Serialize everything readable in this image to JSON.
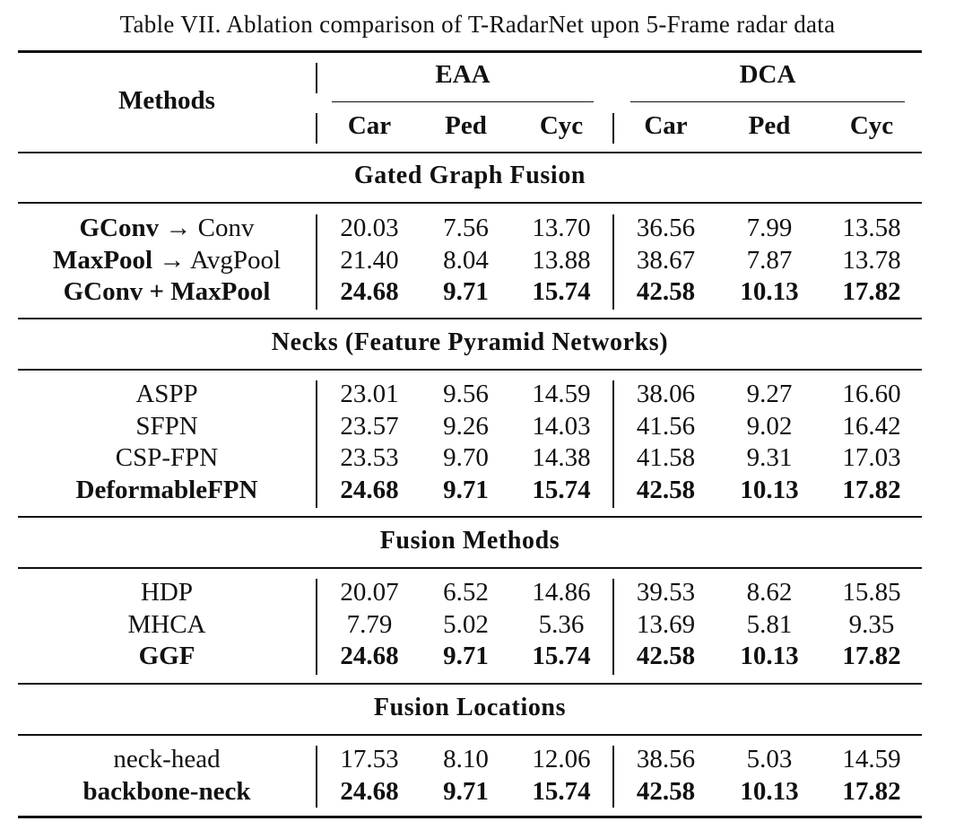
{
  "caption": "Table VII. Ablation comparison of T-RadarNet upon 5-Frame radar data",
  "header": {
    "methods": "Methods",
    "group_eaa": "EAA",
    "group_dca": "DCA",
    "cols": [
      "Car",
      "Ped",
      "Cyc",
      "Car",
      "Ped",
      "Cyc"
    ]
  },
  "sections": [
    {
      "title": "Gated Graph Fusion",
      "rows": [
        {
          "method_bold": "GConv",
          "method_plain": " → Conv",
          "values": [
            "20.03",
            "7.56",
            "13.70",
            "36.56",
            "7.99",
            "13.58"
          ],
          "bold": false
        },
        {
          "method_bold": "MaxPool",
          "method_plain": " → AvgPool",
          "values": [
            "21.40",
            "8.04",
            "13.88",
            "38.67",
            "7.87",
            "13.78"
          ],
          "bold": false
        },
        {
          "method_bold": "GConv + MaxPool",
          "method_plain": "",
          "values": [
            "24.68",
            "9.71",
            "15.74",
            "42.58",
            "10.13",
            "17.82"
          ],
          "bold": true
        }
      ]
    },
    {
      "title": "Necks (Feature Pyramid Networks)",
      "rows": [
        {
          "method_bold": "",
          "method_plain": "ASPP",
          "values": [
            "23.01",
            "9.56",
            "14.59",
            "38.06",
            "9.27",
            "16.60"
          ],
          "bold": false
        },
        {
          "method_bold": "",
          "method_plain": "SFPN",
          "values": [
            "23.57",
            "9.26",
            "14.03",
            "41.56",
            "9.02",
            "16.42"
          ],
          "bold": false
        },
        {
          "method_bold": "",
          "method_plain": "CSP-FPN",
          "values": [
            "23.53",
            "9.70",
            "14.38",
            "41.58",
            "9.31",
            "17.03"
          ],
          "bold": false
        },
        {
          "method_bold": "DeformableFPN",
          "method_plain": "",
          "values": [
            "24.68",
            "9.71",
            "15.74",
            "42.58",
            "10.13",
            "17.82"
          ],
          "bold": true
        }
      ]
    },
    {
      "title": "Fusion Methods",
      "rows": [
        {
          "method_bold": "",
          "method_plain": "HDP",
          "values": [
            "20.07",
            "6.52",
            "14.86",
            "39.53",
            "8.62",
            "15.85"
          ],
          "bold": false
        },
        {
          "method_bold": "",
          "method_plain": "MHCA",
          "values": [
            "7.79",
            "5.02",
            "5.36",
            "13.69",
            "5.81",
            "9.35"
          ],
          "bold": false
        },
        {
          "method_bold": "GGF",
          "method_plain": "",
          "values": [
            "24.68",
            "9.71",
            "15.74",
            "42.58",
            "10.13",
            "17.82"
          ],
          "bold": true
        }
      ]
    },
    {
      "title": "Fusion Locations",
      "rows": [
        {
          "method_bold": "",
          "method_plain": "neck-head",
          "values": [
            "17.53",
            "8.10",
            "12.06",
            "38.56",
            "5.03",
            "14.59"
          ],
          "bold": false
        },
        {
          "method_bold": "backbone-neck",
          "method_plain": "",
          "values": [
            "24.68",
            "9.71",
            "15.74",
            "42.58",
            "10.13",
            "17.82"
          ],
          "bold": true
        }
      ]
    }
  ]
}
